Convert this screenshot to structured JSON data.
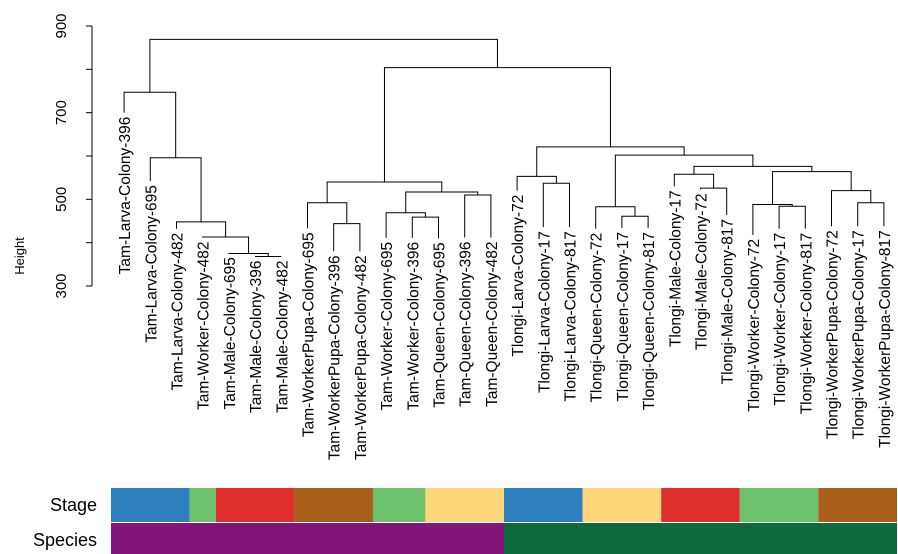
{
  "chart_data": {
    "type": "dendrogram",
    "ylabel": "Height",
    "ylim": [
      300,
      900
    ],
    "yticks": [
      300,
      500,
      700,
      900
    ],
    "ytick_labels": [
      "300",
      "500",
      "700",
      "900"
    ],
    "leaves": [
      "Tam-Larva-Colony-396",
      "Tam-Larva-Colony-695",
      "Tam-Larva-Colony-482",
      "Tam-Worker-Colony-482",
      "Tam-Male-Colony-695",
      "Tam-Male-Colony-396",
      "Tam-Male-Colony-482",
      "Tam-WorkerPupa-Colony-695",
      "Tam-WorkerPupa-Colony-396",
      "Tam-WorkerPupa-Colony-482",
      "Tam-Worker-Colony-695",
      "Tam-Worker-Colony-396",
      "Tam-Queen-Colony-695",
      "Tam-Queen-Colony-396",
      "Tam-Queen-Colony-482",
      "Tlongi-Larva-Colony-72",
      "Tlongi-Larva-Colony-17",
      "Tlongi-Larva-Colony-817",
      "Tlongi-Queen-Colony-72",
      "Tlongi-Queen-Colony-17",
      "Tlongi-Queen-Colony-817",
      "Tlongi-Male-Colony-17",
      "Tlongi-Male-Colony-72",
      "Tlongi-Male-Colony-817",
      "Tlongi-Worker-Colony-72",
      "Tlongi-Worker-Colony-17",
      "Tlongi-Worker-Colony-817",
      "Tlongi-WorkerPupa-Colony-72",
      "Tlongi-WorkerPupa-Colony-17",
      "Tlongi-WorkerPupa-Colony-817"
    ],
    "merges": [
      {
        "left": "L1",
        "right": "L2",
        "height": 535
      },
      {
        "left": "L6",
        "right": "L7",
        "height": 368
      },
      {
        "left": "L5",
        "right": "M2",
        "height": 375
      },
      {
        "left": "L4",
        "right": "M3",
        "height": 413
      },
      {
        "left": "L3",
        "right": "M4",
        "height": 448
      },
      {
        "left": "M1",
        "right": "M5",
        "height": 596
      },
      {
        "left": "L0",
        "right": "M6",
        "height": 747
      },
      {
        "left": "L8",
        "right": "L9",
        "height": 444
      },
      {
        "left": "L7",
        "right": "M8",
        "height": 492
      },
      {
        "left": "L11",
        "right": "L12",
        "height": 459
      },
      {
        "left": "L10",
        "right": "M10",
        "height": 469
      },
      {
        "left": "L13",
        "right": "L14",
        "height": 510
      },
      {
        "left": "M11",
        "right": "M12",
        "height": 517
      },
      {
        "left": "M13",
        "right": "M13b",
        "height": 541,
        "note": ""
      },
      {
        "left": "M9",
        "right": "M14",
        "height": 540
      },
      {
        "left": "L16",
        "right": "L17",
        "height": 537
      },
      {
        "left": "L15",
        "right": "M16",
        "height": 553
      },
      {
        "left": "L19",
        "right": "L20",
        "height": 461
      },
      {
        "left": "L18",
        "right": "M18",
        "height": 483
      },
      {
        "left": "L22",
        "right": "L23",
        "height": 526
      },
      {
        "left": "L21",
        "right": "M20",
        "height": 558
      },
      {
        "left": "L25",
        "right": "L26",
        "height": 484
      },
      {
        "left": "L24",
        "right": "M22",
        "height": 488
      },
      {
        "left": "L28",
        "right": "L29",
        "height": 492
      },
      {
        "left": "L27",
        "right": "M24",
        "height": 520
      },
      {
        "left": "M23",
        "right": "M25",
        "height": 564
      },
      {
        "left": "M21",
        "right": "M26",
        "height": 576
      },
      {
        "left": "M19",
        "right": "M27",
        "height": 602
      },
      {
        "left": "M17",
        "right": "M28",
        "height": 621
      },
      {
        "left": "M15",
        "right": "M29",
        "height": 804
      },
      {
        "left": "M7",
        "right": "M30",
        "height": 869
      }
    ],
    "tracks": [
      {
        "label": "Stage",
        "segments": [
          {
            "from": 0,
            "to": 2,
            "color": "#2d7fbe"
          },
          {
            "from": 3,
            "to": 3,
            "color": "#6dc26e"
          },
          {
            "from": 4,
            "to": 6,
            "color": "#e0302d"
          },
          {
            "from": 7,
            "to": 9,
            "color": "#a85f1a"
          },
          {
            "from": 10,
            "to": 11,
            "color": "#6dc26e"
          },
          {
            "from": 12,
            "to": 14,
            "color": "#fdd77a"
          },
          {
            "from": 15,
            "to": 17,
            "color": "#2d7fbe"
          },
          {
            "from": 18,
            "to": 20,
            "color": "#fdd77a"
          },
          {
            "from": 21,
            "to": 23,
            "color": "#e0302d"
          },
          {
            "from": 24,
            "to": 26,
            "color": "#6dc26e"
          },
          {
            "from": 27,
            "to": 29,
            "color": "#a85f1a"
          }
        ]
      },
      {
        "label": "Species",
        "segments": [
          {
            "from": 0,
            "to": 14,
            "color": "#84137a"
          },
          {
            "from": 15,
            "to": 29,
            "color": "#0d6a3c"
          }
        ]
      }
    ]
  }
}
